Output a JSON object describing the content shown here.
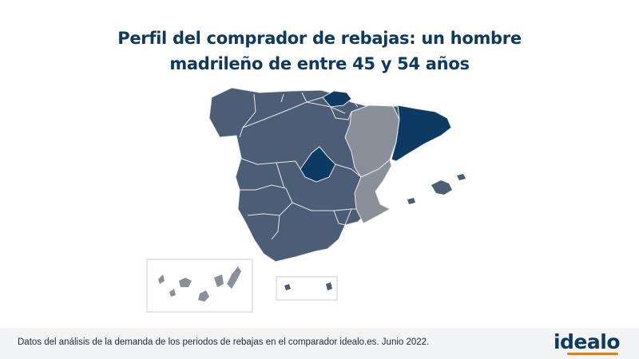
{
  "title": {
    "line1": "Perfil del comprador de rebajas: un hombre",
    "line2": "madrileño de entre 45 y 54 años"
  },
  "map": {
    "colors": {
      "default_region": "#4b5e75",
      "highlight_region": "#0d3a63",
      "grey_region": "#8a9097",
      "border": "#e6e9ee"
    },
    "highlighted_regions": [
      "Madrid",
      "País Vasco",
      "Cataluña"
    ],
    "grey_regions": [
      "Aragón",
      "Comunidad Valenciana",
      "Islas Canarias"
    ]
  },
  "footer": {
    "source": "Datos del análisis de la demanda de los periodos de rebajas en el comparador idealo.es. Junio 2022.",
    "logo": "idealo",
    "logo_accent": "#f07c00"
  }
}
